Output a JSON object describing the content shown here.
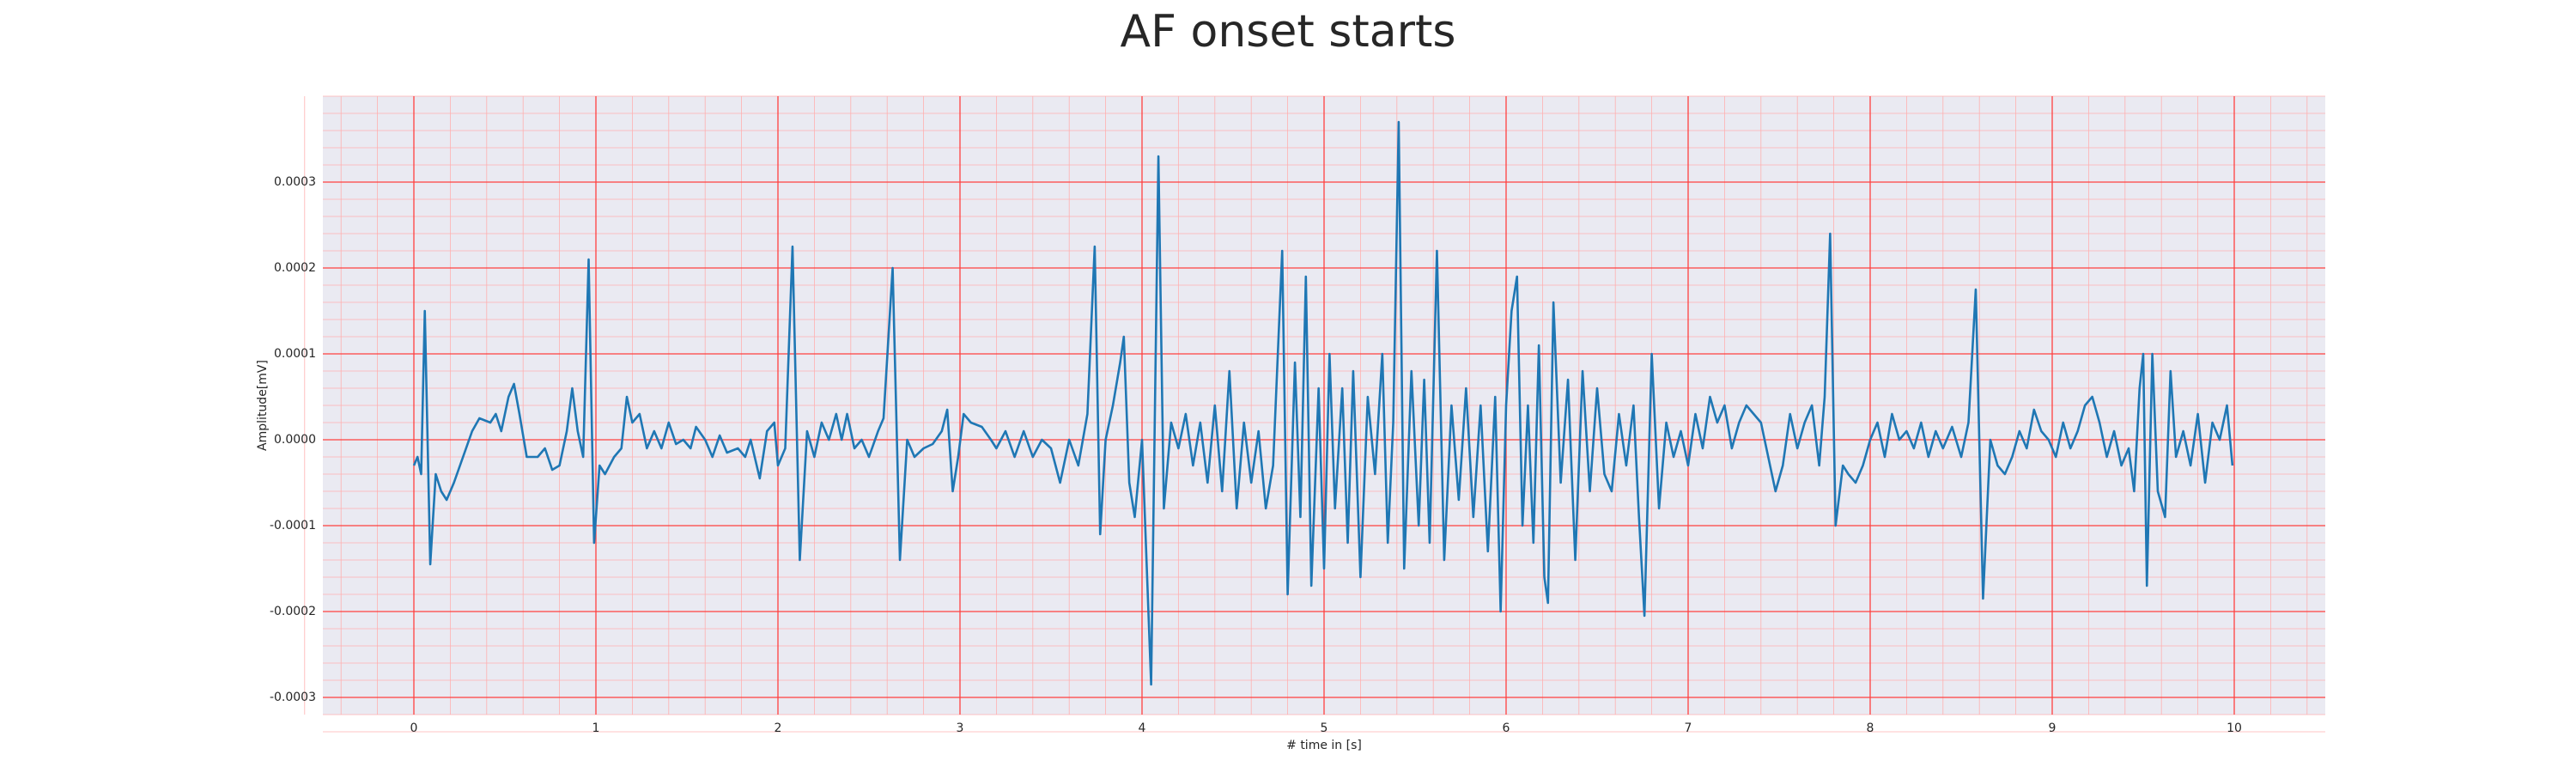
{
  "chart_data": {
    "type": "line",
    "title": "AF onset starts",
    "xlabel": "# time in [s]",
    "ylabel": "Amplitude[mV]",
    "xlim": [
      -0.5,
      10.5
    ],
    "xticks": [
      0,
      1,
      2,
      3,
      4,
      5,
      6,
      7,
      8,
      9,
      10
    ],
    "ylim": [
      -0.00032,
      0.0004
    ],
    "yticks": [
      {
        "value": -0.0003,
        "label": "-0.0003"
      },
      {
        "value": -0.0002,
        "label": "-0.0002"
      },
      {
        "value": -0.0001,
        "label": "-0.0001"
      },
      {
        "value": 0,
        "label": "0.0000"
      },
      {
        "value": 0.0001,
        "label": "0.0001"
      },
      {
        "value": 0.0002,
        "label": "0.0002"
      },
      {
        "value": 0.0003,
        "label": "0.0003"
      }
    ],
    "grid": true,
    "minor_grid": true,
    "series": [
      {
        "color": "#1f77b4",
        "x": [
          0,
          0.02,
          0.04,
          0.06,
          0.09,
          0.12,
          0.15,
          0.18,
          0.22,
          0.27,
          0.32,
          0.36,
          0.42,
          0.45,
          0.48,
          0.52,
          0.55,
          0.58,
          0.62,
          0.68,
          0.72,
          0.76,
          0.8,
          0.84,
          0.87,
          0.9,
          0.93,
          0.96,
          0.99,
          1.02,
          1.05,
          1.1,
          1.14,
          1.17,
          1.2,
          1.24,
          1.28,
          1.32,
          1.36,
          1.4,
          1.44,
          1.48,
          1.52,
          1.55,
          1.6,
          1.64,
          1.68,
          1.72,
          1.78,
          1.82,
          1.85,
          1.9,
          1.94,
          1.98,
          2.0,
          2.04,
          2.08,
          2.12,
          2.16,
          2.2,
          2.24,
          2.28,
          2.32,
          2.35,
          2.38,
          2.42,
          2.46,
          2.5,
          2.55,
          2.58,
          2.63,
          2.67,
          2.71,
          2.75,
          2.8,
          2.85,
          2.9,
          2.93,
          2.96,
          2.99,
          3.02,
          3.06,
          3.12,
          3.17,
          3.2,
          3.25,
          3.3,
          3.35,
          3.4,
          3.45,
          3.5,
          3.55,
          3.6,
          3.65,
          3.7,
          3.74,
          3.77,
          3.8,
          3.84,
          3.88,
          3.9,
          3.93,
          3.96,
          4.0,
          4.05,
          4.09,
          4.12,
          4.16,
          4.2,
          4.24,
          4.28,
          4.32,
          4.36,
          4.4,
          4.44,
          4.48,
          4.52,
          4.56,
          4.6,
          4.64,
          4.68,
          4.72,
          4.77,
          4.8,
          4.84,
          4.87,
          4.9,
          4.93,
          4.97,
          5.0,
          5.03,
          5.06,
          5.1,
          5.13,
          5.16,
          5.2,
          5.24,
          5.28,
          5.32,
          5.35,
          5.38,
          5.41,
          5.44,
          5.48,
          5.52,
          5.55,
          5.58,
          5.62,
          5.66,
          5.7,
          5.74,
          5.78,
          5.82,
          5.86,
          5.9,
          5.94,
          5.97,
          6.0,
          6.03,
          6.06,
          6.09,
          6.12,
          6.15,
          6.18,
          6.21,
          6.23,
          6.26,
          6.3,
          6.34,
          6.38,
          6.42,
          6.46,
          6.5,
          6.54,
          6.58,
          6.62,
          6.66,
          6.7,
          6.73,
          6.76,
          6.8,
          6.84,
          6.88,
          6.92,
          6.96,
          7.0,
          7.04,
          7.08,
          7.12,
          7.16,
          7.2,
          7.24,
          7.28,
          7.32,
          7.36,
          7.4,
          7.44,
          7.48,
          7.52,
          7.56,
          7.6,
          7.64,
          7.68,
          7.72,
          7.75,
          7.78,
          7.81,
          7.85,
          7.88,
          7.92,
          7.96,
          8.0,
          8.04,
          8.08,
          8.12,
          8.16,
          8.2,
          8.24,
          8.28,
          8.32,
          8.36,
          8.4,
          8.45,
          8.5,
          8.54,
          8.58,
          8.62,
          8.66,
          8.7,
          8.74,
          8.78,
          8.82,
          8.86,
          8.9,
          8.94,
          8.98,
          9.02,
          9.06,
          9.1,
          9.14,
          9.18,
          9.22,
          9.26,
          9.3,
          9.34,
          9.38,
          9.42,
          9.45,
          9.48,
          9.5,
          9.52,
          9.55,
          9.58,
          9.62,
          9.65,
          9.68,
          9.72,
          9.76,
          9.8,
          9.84,
          9.88,
          9.92,
          9.96,
          9.99
        ],
        "values": [
          -3e-05,
          -2e-05,
          -4e-05,
          0.00015,
          -0.000145,
          -4e-05,
          -6e-05,
          -7e-05,
          -5e-05,
          -2e-05,
          1e-05,
          2.5e-05,
          2e-05,
          3e-05,
          1e-05,
          5e-05,
          6.5e-05,
          3e-05,
          -2e-05,
          -2e-05,
          -1e-05,
          -3.5e-05,
          -3e-05,
          1e-05,
          6e-05,
          1e-05,
          -2e-05,
          0.00021,
          -0.00012,
          -3e-05,
          -4e-05,
          -2e-05,
          -1e-05,
          5e-05,
          2e-05,
          3e-05,
          -1e-05,
          1e-05,
          -1e-05,
          2e-05,
          -5e-06,
          0,
          -1e-05,
          1.5e-05,
          0,
          -2e-05,
          5e-06,
          -1.5e-05,
          -1e-05,
          -2e-05,
          0,
          -4.5e-05,
          1e-05,
          2e-05,
          -3e-05,
          -1e-05,
          0.000225,
          -0.00014,
          1e-05,
          -2e-05,
          2e-05,
          0,
          3e-05,
          0,
          3e-05,
          -1e-05,
          0,
          -2e-05,
          1e-05,
          2.5e-05,
          0.0002,
          -0.00014,
          0,
          -2e-05,
          -1e-05,
          -5e-06,
          1e-05,
          3.5e-05,
          -6e-05,
          -2e-05,
          3e-05,
          2e-05,
          1.5e-05,
          0,
          -1e-05,
          1e-05,
          -2e-05,
          1e-05,
          -2e-05,
          0,
          -1e-05,
          -5e-05,
          0,
          -3e-05,
          3e-05,
          0.000225,
          -0.00011,
          0,
          4e-05,
          9e-05,
          0.00012,
          -5e-05,
          -9e-05,
          0,
          -0.000285,
          0.00033,
          -8e-05,
          2e-05,
          -1e-05,
          3e-05,
          -3e-05,
          2e-05,
          -5e-05,
          4e-05,
          -6e-05,
          8e-05,
          -8e-05,
          2e-05,
          -5e-05,
          1e-05,
          -8e-05,
          -3e-05,
          0.00022,
          -0.00018,
          9e-05,
          -9e-05,
          0.00019,
          -0.00017,
          6e-05,
          -0.00015,
          0.0001,
          -8e-05,
          6e-05,
          -0.00012,
          8e-05,
          -0.00016,
          5e-05,
          -4e-05,
          0.0001,
          -0.00012,
          2e-05,
          0.00037,
          -0.00015,
          8e-05,
          -0.0001,
          7e-05,
          -0.00012,
          0.00022,
          -0.00014,
          4e-05,
          -7e-05,
          6e-05,
          -9e-05,
          4e-05,
          -0.00013,
          5e-05,
          -0.0002,
          4e-05,
          0.00015,
          0.00019,
          -0.0001,
          4e-05,
          -0.00012,
          0.00011,
          -0.00016,
          -0.00019,
          0.00016,
          -5e-05,
          7e-05,
          -0.00014,
          8e-05,
          -6e-05,
          6e-05,
          -4e-05,
          -6e-05,
          3e-05,
          -3e-05,
          4e-05,
          -9e-05,
          -0.000205,
          0.0001,
          -8e-05,
          2e-05,
          -2e-05,
          1e-05,
          -3e-05,
          3e-05,
          -1e-05,
          5e-05,
          2e-05,
          4e-05,
          -1e-05,
          2e-05,
          4e-05,
          3e-05,
          2e-05,
          -2e-05,
          -6e-05,
          -3e-05,
          3e-05,
          -1e-05,
          2e-05,
          4e-05,
          -3e-05,
          5e-05,
          0.00024,
          -0.0001,
          -3e-05,
          -4e-05,
          -5e-05,
          -3e-05,
          0,
          2e-05,
          -2e-05,
          3e-05,
          0,
          1e-05,
          -1e-05,
          2e-05,
          -2e-05,
          1e-05,
          -1e-05,
          1.5e-05,
          -2e-05,
          2e-05,
          0.000175,
          -0.000185,
          0,
          -3e-05,
          -4e-05,
          -2e-05,
          1e-05,
          -1e-05,
          3.5e-05,
          1e-05,
          0,
          -2e-05,
          2e-05,
          -1e-05,
          1e-05,
          4e-05,
          5e-05,
          2e-05,
          -2e-05,
          1e-05,
          -3e-05,
          -1e-05,
          -6e-05,
          6e-05,
          0.0001,
          -0.00017,
          0.0001,
          -6e-05,
          -9e-05,
          8e-05,
          -2e-05,
          1e-05,
          -3e-05,
          3e-05,
          -5e-05,
          2e-05,
          0,
          4e-05,
          -3e-05
        ]
      }
    ]
  }
}
